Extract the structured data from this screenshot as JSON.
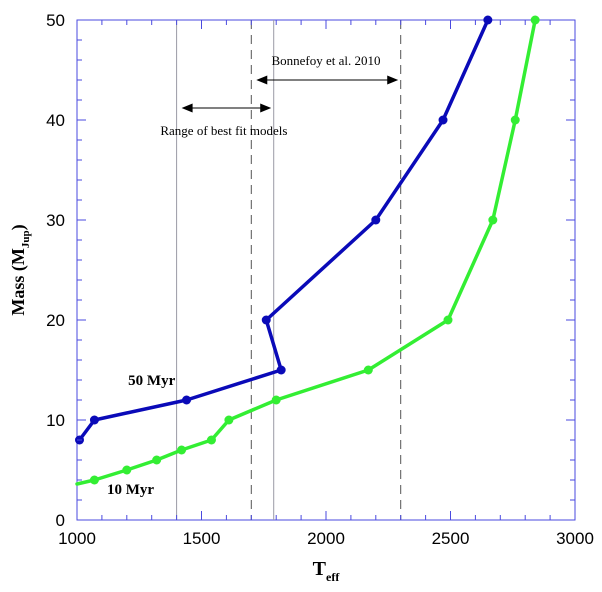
{
  "chart_data": {
    "type": "line",
    "xlabel": "T",
    "xlabel_sub": "eff",
    "ylabel": "Mass (M",
    "ylabel_sub": "Jup",
    "ylabel_close": ")",
    "xlim": [
      1000,
      3000
    ],
    "ylim": [
      0,
      50
    ],
    "xticks": [
      1000,
      1500,
      2000,
      2500,
      3000
    ],
    "yticks": [
      0,
      10,
      20,
      30,
      40,
      50
    ],
    "grid": false,
    "series": [
      {
        "name": "50 Myr",
        "color": "#0a0ab8",
        "x": [
          1010,
          1070,
          1440,
          1820,
          1760,
          2200,
          2470,
          2650
        ],
        "y": [
          8,
          10,
          12,
          15,
          20,
          30,
          40,
          50
        ]
      },
      {
        "name": "10 Myr",
        "color": "#33ee33",
        "x": [
          1070,
          1200,
          1320,
          1420,
          1540,
          1610,
          1800,
          2170,
          2490,
          2670,
          2760,
          2840
        ],
        "y": [
          4,
          5,
          6,
          7,
          8,
          10,
          12,
          15,
          20,
          30,
          40,
          50
        ]
      }
    ],
    "series_line_extension": {
      "series": "10 Myr",
      "from": [
        1000,
        3.6
      ]
    },
    "vertical_lines": [
      {
        "x": 1400,
        "style": "solid",
        "color": "#9a9aa6"
      },
      {
        "x": 1790,
        "style": "solid",
        "color": "#9a9aa6"
      },
      {
        "x": 1700,
        "style": "dashed",
        "color": "#555555"
      },
      {
        "x": 2300,
        "style": "dashed",
        "color": "#555555"
      }
    ],
    "annotations": [
      {
        "text": "Range of best fit models",
        "arrow_from": 1420,
        "arrow_to": 1780,
        "arrow_y": 41.2,
        "text_x": 1590,
        "text_y": 38.5
      },
      {
        "text": "Bonnefoy et al. 2010",
        "arrow_from": 1720,
        "arrow_to": 2290,
        "arrow_y": 44.0,
        "text_x": 2000,
        "text_y": 45.5
      }
    ],
    "series_labels": [
      {
        "text": "50 Myr",
        "x": 1300,
        "y": 13.5
      },
      {
        "text": "10 Myr",
        "x": 1215,
        "y": 2.6
      }
    ]
  }
}
